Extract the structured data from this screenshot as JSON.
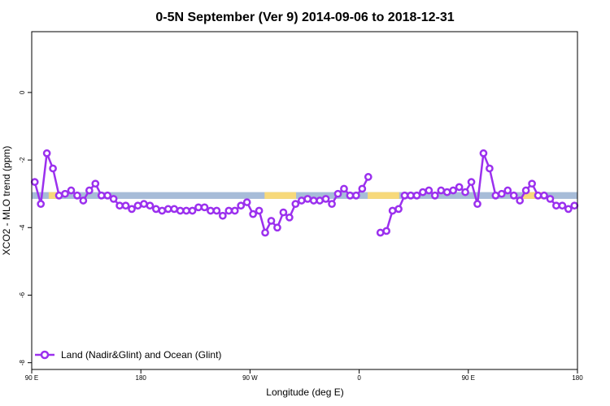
{
  "chart_data": {
    "type": "line",
    "title": "0-5N September (Ver 9)   2014-09-06 to 2018-12-31",
    "xlabel": "Longitude (deg E)",
    "ylabel": "XCO2 - MLO trend (ppm)",
    "xlim": [
      90,
      540
    ],
    "ylim": [
      -8.2,
      1.8
    ],
    "x_ticks": [
      {
        "value": 90,
        "label": "90 E"
      },
      {
        "value": 180,
        "label": "180"
      },
      {
        "value": 270,
        "label": "90 W"
      },
      {
        "value": 360,
        "label": "0"
      },
      {
        "value": 450,
        "label": "90 E"
      },
      {
        "value": 540,
        "label": "180"
      }
    ],
    "y_ticks": [
      {
        "value": 0,
        "label": "0"
      },
      {
        "value": -2,
        "label": "-2"
      },
      {
        "value": -4,
        "label": "-4"
      },
      {
        "value": -6,
        "label": "-6"
      },
      {
        "value": -8,
        "label": "-8"
      }
    ],
    "surface_band": {
      "y_range": [
        -3.15,
        -2.95
      ],
      "ocean_color": "#a7bcd8",
      "land_color": "#f7d97a",
      "land_segments": [
        [
          104,
          114
        ],
        [
          282,
          308
        ],
        [
          367,
          393
        ],
        [
          495,
          513
        ]
      ]
    },
    "series": [
      {
        "name": "Land (Nadir&Glint) and Ocean (Glint)",
        "color": "#9b30ee",
        "segments": [
          {
            "x": [
              92.5,
              97.5,
              102.5,
              107.5,
              112.5,
              117.5,
              122.5,
              127.5,
              132.5,
              137.5,
              142.5,
              147.5,
              152.5,
              157.5,
              162.5,
              167.5,
              172.5,
              177.5,
              182.5,
              187.5,
              192.5,
              197.5,
              202.5,
              207.5,
              212.5,
              217.5,
              222.5,
              227.5,
              232.5,
              237.5,
              242.5,
              247.5,
              252.5,
              257.5,
              262.5,
              267.5,
              272.5,
              277.5,
              282.5,
              287.5,
              292.5,
              297.5,
              302.5,
              307.5,
              312.5,
              317.5,
              322.5,
              327.5,
              332.5,
              337.5,
              342.5,
              347.5,
              352.5,
              357.5,
              362.5,
              367.5
            ],
            "y": [
              -2.65,
              -3.3,
              -1.8,
              -2.25,
              -3.05,
              -3.0,
              -2.9,
              -3.05,
              -3.2,
              -2.9,
              -2.7,
              -3.05,
              -3.05,
              -3.15,
              -3.35,
              -3.35,
              -3.45,
              -3.35,
              -3.3,
              -3.35,
              -3.45,
              -3.5,
              -3.45,
              -3.45,
              -3.5,
              -3.5,
              -3.5,
              -3.4,
              -3.4,
              -3.5,
              -3.5,
              -3.65,
              -3.5,
              -3.5,
              -3.35,
              -3.25,
              -3.6,
              -3.5,
              -4.15,
              -3.8,
              -4.0,
              -3.55,
              -3.7,
              -3.3,
              -3.2,
              -3.15,
              -3.2,
              -3.2,
              -3.15,
              -3.3,
              -3.0,
              -2.85,
              -3.05,
              -3.05,
              -2.85,
              -2.5
            ]
          },
          {
            "x": [
              377.5,
              382.5,
              387.5,
              392.5,
              397.5,
              402.5,
              407.5,
              412.5,
              417.5,
              422.5,
              427.5,
              432.5,
              437.5,
              442.5,
              447.5,
              452.5,
              457.5,
              462.5,
              467.5,
              472.5,
              477.5,
              482.5,
              487.5,
              492.5,
              497.5,
              502.5,
              507.5,
              512.5,
              517.5,
              522.5,
              527.5,
              532.5,
              537.5
            ],
            "y": [
              -4.15,
              -4.1,
              -3.5,
              -3.45,
              -3.05,
              -3.05,
              -3.05,
              -2.95,
              -2.9,
              -3.05,
              -2.9,
              -2.95,
              -2.9,
              -2.8,
              -2.95,
              -2.65,
              -3.3,
              -1.8,
              -2.25,
              -3.05,
              -3.0,
              -2.9,
              -3.05,
              -3.2,
              -2.9,
              -2.7,
              -3.05,
              -3.05,
              -3.15,
              -3.35,
              -3.35,
              -3.45,
              -3.35
            ]
          }
        ]
      }
    ],
    "legend": {
      "position": "bottom-left"
    }
  }
}
